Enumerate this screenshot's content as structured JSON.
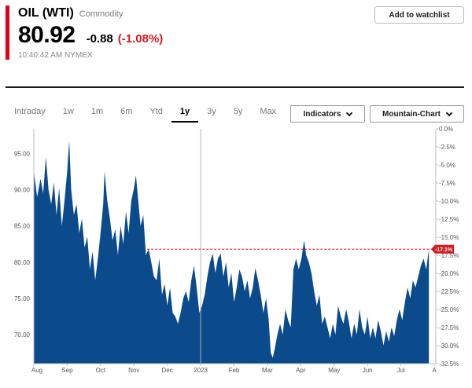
{
  "header": {
    "title": "OIL (WTI)",
    "asset_type": "Commodity",
    "price": "80.92",
    "change": "-0.88",
    "change_pct": "(-1.08%)",
    "time": "10:40:42 AM",
    "exchange": "NYMEX",
    "watchlist_label": "Add to watchlist"
  },
  "tabs": [
    {
      "label": "Intraday",
      "active": false
    },
    {
      "label": "1w",
      "active": false
    },
    {
      "label": "1m",
      "active": false
    },
    {
      "label": "6m",
      "active": false
    },
    {
      "label": "Ytd",
      "active": false
    },
    {
      "label": "1y",
      "active": true
    },
    {
      "label": "3y",
      "active": false
    },
    {
      "label": "5y",
      "active": false
    },
    {
      "label": "Max",
      "active": false
    }
  ],
  "controls": {
    "indicators_label": "Indicators",
    "chart_type_label": "Mountain-Chart"
  },
  "colors": {
    "accent_red": "#e1001a",
    "negative": "#d71920",
    "fill": "#0b4a8b"
  },
  "chart_data": {
    "type": "area",
    "x_labels": [
      "Aug",
      "Sep",
      "Oct",
      "Nov",
      "Dec",
      "2023",
      "Feb",
      "Mar",
      "Apr",
      "May",
      "Jun",
      "Jul",
      "A"
    ],
    "left_axis_labels": [
      "95.00",
      "90.00",
      "85.00",
      "80.00",
      "75.00",
      "70.00"
    ],
    "right_axis_labels": [
      "0.0%",
      "-2.5%",
      "-5.0%",
      "-7.5%",
      "-10.0%",
      "-12.5%",
      "-15.0%",
      "-17.5%",
      "-20.0%",
      "-22.5%",
      "-25.0%",
      "-27.5%",
      "-30.0%",
      "-32.5%"
    ],
    "last_value_label": "-17.1%",
    "last_value": 81.8,
    "left_ylim": [
      66,
      98.4
    ],
    "right_ylim": [
      -32.5,
      0
    ],
    "x_range": [
      0,
      12
    ],
    "grid": false,
    "points": [
      [
        0.0,
        92.6
      ],
      [
        0.1,
        89.0
      ],
      [
        0.2,
        91.5
      ],
      [
        0.28,
        89.5
      ],
      [
        0.36,
        94.5
      ],
      [
        0.44,
        90.0
      ],
      [
        0.52,
        88.0
      ],
      [
        0.6,
        91.0
      ],
      [
        0.68,
        86.5
      ],
      [
        0.76,
        90.2
      ],
      [
        0.84,
        85.0
      ],
      [
        0.92,
        88.5
      ],
      [
        1.0,
        92.5
      ],
      [
        1.06,
        96.8
      ],
      [
        1.12,
        90.0
      ],
      [
        1.2,
        86.5
      ],
      [
        1.28,
        88.0
      ],
      [
        1.36,
        84.0
      ],
      [
        1.44,
        86.0
      ],
      [
        1.52,
        82.0
      ],
      [
        1.6,
        83.5
      ],
      [
        1.68,
        79.0
      ],
      [
        1.76,
        81.5
      ],
      [
        1.84,
        77.5
      ],
      [
        1.92,
        80.5
      ],
      [
        2.0,
        84.0
      ],
      [
        2.08,
        88.0
      ],
      [
        2.12,
        92.5
      ],
      [
        2.2,
        88.5
      ],
      [
        2.28,
        86.0
      ],
      [
        2.36,
        83.0
      ],
      [
        2.44,
        84.5
      ],
      [
        2.52,
        81.0
      ],
      [
        2.6,
        85.0
      ],
      [
        2.68,
        82.5
      ],
      [
        2.76,
        87.0
      ],
      [
        2.84,
        84.0
      ],
      [
        2.92,
        88.5
      ],
      [
        3.0,
        90.2
      ],
      [
        3.06,
        92.0
      ],
      [
        3.12,
        89.0
      ],
      [
        3.2,
        85.0
      ],
      [
        3.28,
        86.5
      ],
      [
        3.36,
        81.0
      ],
      [
        3.44,
        81.8
      ],
      [
        3.52,
        80.0
      ],
      [
        3.6,
        78.0
      ],
      [
        3.68,
        77.5
      ],
      [
        3.76,
        80.5
      ],
      [
        3.84,
        75.5
      ],
      [
        3.92,
        77.0
      ],
      [
        4.0,
        74.0
      ],
      [
        4.08,
        76.5
      ],
      [
        4.16,
        73.0
      ],
      [
        4.24,
        72.5
      ],
      [
        4.32,
        71.5
      ],
      [
        4.4,
        73.0
      ],
      [
        4.48,
        75.0
      ],
      [
        4.56,
        76.0
      ],
      [
        4.64,
        74.5
      ],
      [
        4.72,
        77.5
      ],
      [
        4.8,
        79.5
      ],
      [
        4.88,
        76.5
      ],
      [
        4.96,
        73.0
      ],
      [
        5.04,
        74.0
      ],
      [
        5.12,
        75.5
      ],
      [
        5.2,
        78.0
      ],
      [
        5.28,
        80.0
      ],
      [
        5.36,
        81.2
      ],
      [
        5.44,
        78.5
      ],
      [
        5.52,
        80.5
      ],
      [
        5.6,
        81.2
      ],
      [
        5.68,
        78.0
      ],
      [
        5.76,
        80.0
      ],
      [
        5.84,
        76.5
      ],
      [
        5.92,
        78.5
      ],
      [
        6.0,
        74.5
      ],
      [
        6.08,
        76.5
      ],
      [
        6.16,
        79.0
      ],
      [
        6.24,
        78.0
      ],
      [
        6.32,
        76.0
      ],
      [
        6.4,
        77.5
      ],
      [
        6.48,
        75.0
      ],
      [
        6.56,
        76.5
      ],
      [
        6.64,
        79.2
      ],
      [
        6.72,
        77.5
      ],
      [
        6.8,
        75.5
      ],
      [
        6.88,
        73.0
      ],
      [
        6.96,
        75.0
      ],
      [
        7.04,
        72.0
      ],
      [
        7.1,
        67.5
      ],
      [
        7.16,
        66.8
      ],
      [
        7.22,
        68.0
      ],
      [
        7.3,
        70.0
      ],
      [
        7.38,
        71.5
      ],
      [
        7.46,
        70.0
      ],
      [
        7.54,
        73.5
      ],
      [
        7.62,
        72.0
      ],
      [
        7.7,
        71.0
      ],
      [
        7.78,
        79.0
      ],
      [
        7.86,
        80.5
      ],
      [
        7.94,
        79.0
      ],
      [
        8.02,
        80.5
      ],
      [
        8.1,
        83.0
      ],
      [
        8.16,
        81.0
      ],
      [
        8.24,
        80.0
      ],
      [
        8.32,
        78.5
      ],
      [
        8.4,
        76.0
      ],
      [
        8.48,
        74.0
      ],
      [
        8.56,
        75.5
      ],
      [
        8.64,
        71.5
      ],
      [
        8.72,
        72.5
      ],
      [
        8.8,
        71.0
      ],
      [
        8.88,
        69.5
      ],
      [
        8.96,
        71.5
      ],
      [
        9.04,
        70.0
      ],
      [
        9.12,
        74.0
      ],
      [
        9.2,
        72.5
      ],
      [
        9.28,
        71.5
      ],
      [
        9.36,
        73.5
      ],
      [
        9.44,
        71.8
      ],
      [
        9.52,
        69.5
      ],
      [
        9.6,
        71.5
      ],
      [
        9.68,
        70.0
      ],
      [
        9.76,
        73.5
      ],
      [
        9.84,
        71.0
      ],
      [
        9.92,
        70.0
      ],
      [
        10.0,
        72.5
      ],
      [
        10.08,
        69.5
      ],
      [
        10.16,
        71.0
      ],
      [
        10.24,
        69.5
      ],
      [
        10.32,
        72.0
      ],
      [
        10.4,
        70.5
      ],
      [
        10.48,
        68.5
      ],
      [
        10.56,
        70.5
      ],
      [
        10.64,
        69.0
      ],
      [
        10.72,
        71.0
      ],
      [
        10.8,
        69.8
      ],
      [
        10.88,
        72.0
      ],
      [
        10.96,
        73.5
      ],
      [
        11.04,
        72.0
      ],
      [
        11.12,
        74.5
      ],
      [
        11.2,
        76.5
      ],
      [
        11.28,
        75.0
      ],
      [
        11.36,
        77.5
      ],
      [
        11.44,
        76.5
      ],
      [
        11.52,
        78.0
      ],
      [
        11.6,
        79.5
      ],
      [
        11.68,
        80.5
      ],
      [
        11.76,
        79.0
      ],
      [
        11.84,
        81.8
      ]
    ]
  }
}
